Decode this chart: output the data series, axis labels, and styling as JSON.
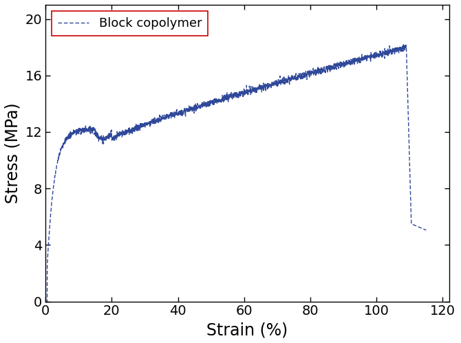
{
  "xlabel": "Strain (%)",
  "ylabel": "Stress (MPa)",
  "legend_label": "Block copolymer",
  "line_color": "#2f4899",
  "line_width": 1.0,
  "xlim": [
    0,
    122
  ],
  "ylim": [
    0,
    21
  ],
  "xticks": [
    0,
    20,
    40,
    60,
    80,
    100,
    120
  ],
  "yticks": [
    0,
    4,
    8,
    12,
    16,
    20
  ],
  "xlabel_fontsize": 17,
  "ylabel_fontsize": 17,
  "tick_fontsize": 14,
  "legend_fontsize": 13,
  "background_color": "#ffffff",
  "noise_amplitude": 0.12,
  "legend_edge_color": "#cc0000",
  "dashes": [
    4,
    2
  ]
}
